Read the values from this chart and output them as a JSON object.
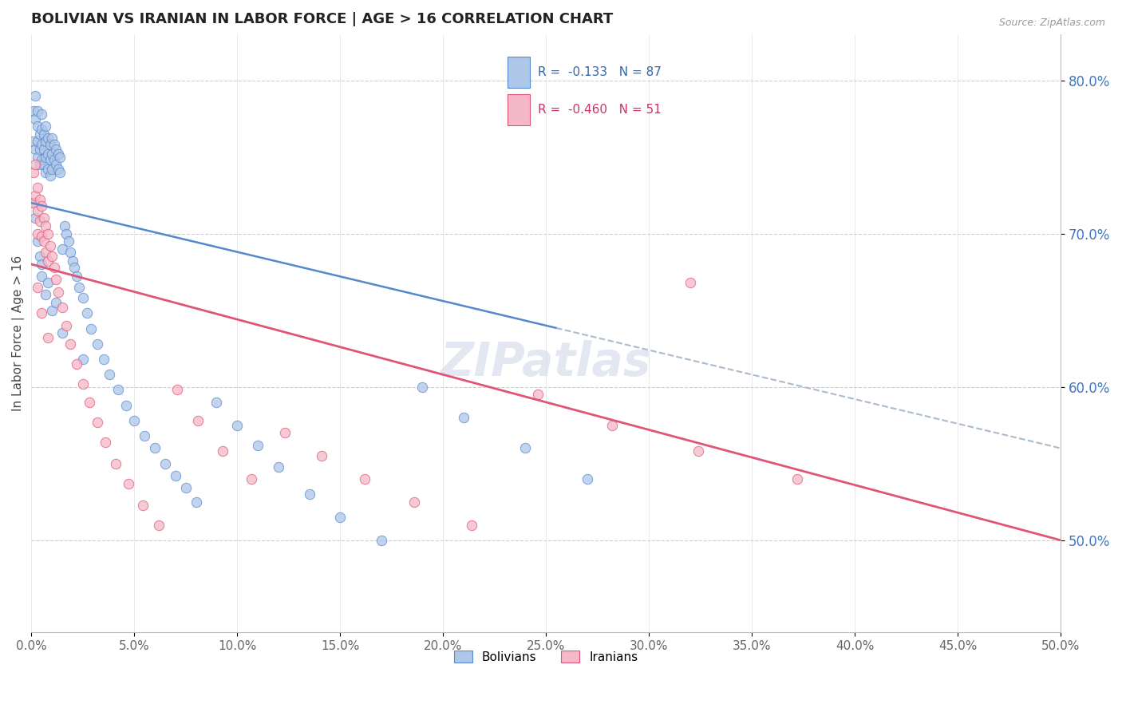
{
  "title": "BOLIVIAN VS IRANIAN IN LABOR FORCE | AGE > 16 CORRELATION CHART",
  "source_text": "Source: ZipAtlas.com",
  "ylabel": "In Labor Force | Age > 16",
  "xlim": [
    0.0,
    0.5
  ],
  "ylim": [
    0.44,
    0.83
  ],
  "xticks": [
    0.0,
    0.05,
    0.1,
    0.15,
    0.2,
    0.25,
    0.3,
    0.35,
    0.4,
    0.45,
    0.5
  ],
  "yticks": [
    0.5,
    0.6,
    0.7,
    0.8
  ],
  "bolivians_R": -0.133,
  "bolivians_N": 87,
  "iranians_R": -0.46,
  "iranians_N": 51,
  "bolivians_color": "#aec6e8",
  "iranians_color": "#f5b8c8",
  "bolivians_line_color": "#5588cc",
  "iranians_line_color": "#e05575",
  "bolivians_x": [
    0.001,
    0.001,
    0.002,
    0.002,
    0.002,
    0.003,
    0.003,
    0.003,
    0.003,
    0.004,
    0.004,
    0.004,
    0.005,
    0.005,
    0.005,
    0.005,
    0.006,
    0.006,
    0.006,
    0.007,
    0.007,
    0.007,
    0.007,
    0.008,
    0.008,
    0.008,
    0.009,
    0.009,
    0.009,
    0.01,
    0.01,
    0.01,
    0.011,
    0.011,
    0.012,
    0.012,
    0.013,
    0.013,
    0.014,
    0.014,
    0.015,
    0.016,
    0.017,
    0.018,
    0.019,
    0.02,
    0.021,
    0.022,
    0.023,
    0.025,
    0.027,
    0.029,
    0.032,
    0.035,
    0.038,
    0.042,
    0.046,
    0.05,
    0.055,
    0.06,
    0.065,
    0.07,
    0.075,
    0.08,
    0.09,
    0.1,
    0.11,
    0.12,
    0.135,
    0.15,
    0.17,
    0.19,
    0.21,
    0.24,
    0.27,
    0.001,
    0.002,
    0.003,
    0.004,
    0.005,
    0.007,
    0.01,
    0.015,
    0.025,
    0.005,
    0.008,
    0.012
  ],
  "bolivians_y": [
    0.76,
    0.78,
    0.755,
    0.775,
    0.79,
    0.76,
    0.77,
    0.75,
    0.78,
    0.755,
    0.765,
    0.745,
    0.758,
    0.768,
    0.748,
    0.778,
    0.755,
    0.745,
    0.765,
    0.75,
    0.76,
    0.74,
    0.77,
    0.752,
    0.762,
    0.742,
    0.748,
    0.758,
    0.738,
    0.752,
    0.742,
    0.762,
    0.748,
    0.758,
    0.745,
    0.755,
    0.742,
    0.752,
    0.74,
    0.75,
    0.69,
    0.705,
    0.7,
    0.695,
    0.688,
    0.682,
    0.678,
    0.672,
    0.665,
    0.658,
    0.648,
    0.638,
    0.628,
    0.618,
    0.608,
    0.598,
    0.588,
    0.578,
    0.568,
    0.56,
    0.55,
    0.542,
    0.534,
    0.525,
    0.59,
    0.575,
    0.562,
    0.548,
    0.53,
    0.515,
    0.5,
    0.6,
    0.58,
    0.56,
    0.54,
    0.72,
    0.71,
    0.695,
    0.685,
    0.672,
    0.66,
    0.65,
    0.635,
    0.618,
    0.68,
    0.668,
    0.655
  ],
  "iranians_x": [
    0.001,
    0.001,
    0.002,
    0.002,
    0.003,
    0.003,
    0.003,
    0.004,
    0.004,
    0.005,
    0.005,
    0.006,
    0.006,
    0.007,
    0.007,
    0.008,
    0.008,
    0.009,
    0.01,
    0.011,
    0.012,
    0.013,
    0.015,
    0.017,
    0.019,
    0.022,
    0.025,
    0.028,
    0.032,
    0.036,
    0.041,
    0.047,
    0.054,
    0.062,
    0.071,
    0.081,
    0.093,
    0.107,
    0.123,
    0.141,
    0.162,
    0.186,
    0.214,
    0.246,
    0.282,
    0.324,
    0.372,
    0.003,
    0.005,
    0.008,
    0.32
  ],
  "iranians_y": [
    0.74,
    0.72,
    0.745,
    0.725,
    0.73,
    0.715,
    0.7,
    0.722,
    0.708,
    0.718,
    0.698,
    0.71,
    0.695,
    0.705,
    0.688,
    0.7,
    0.682,
    0.692,
    0.685,
    0.678,
    0.67,
    0.662,
    0.652,
    0.64,
    0.628,
    0.615,
    0.602,
    0.59,
    0.577,
    0.564,
    0.55,
    0.537,
    0.523,
    0.51,
    0.598,
    0.578,
    0.558,
    0.54,
    0.57,
    0.555,
    0.54,
    0.525,
    0.51,
    0.595,
    0.575,
    0.558,
    0.54,
    0.665,
    0.648,
    0.632,
    0.668
  ],
  "watermark": "ZIPatlas"
}
